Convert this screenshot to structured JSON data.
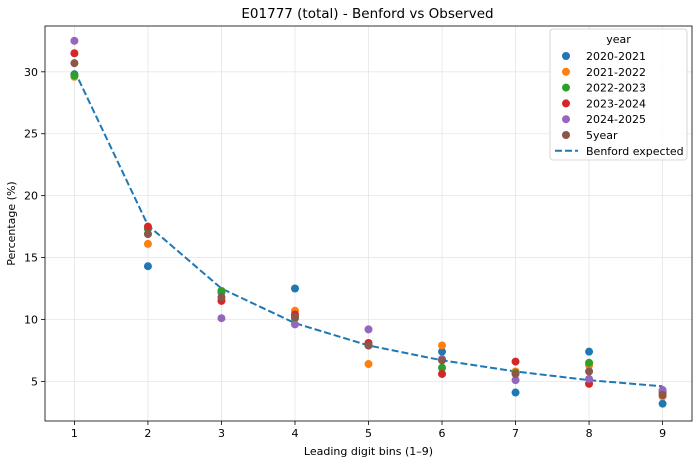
{
  "chart_data": {
    "type": "scatter",
    "title": "E01777 (total) - Benford vs Observed",
    "xlabel": "Leading digit bins (1–9)",
    "ylabel": "Percentage (%)",
    "x": [
      1,
      2,
      3,
      4,
      5,
      6,
      7,
      8,
      9
    ],
    "xlim": [
      0.6,
      9.4
    ],
    "ylim": [
      1.8,
      33.7
    ],
    "yticks": [
      5,
      10,
      15,
      20,
      25,
      30
    ],
    "grid": true,
    "legend": {
      "title": "year",
      "placement": "top-right"
    },
    "series": [
      {
        "name": "2020-2021",
        "color": "#1f77b4",
        "values": [
          29.8,
          14.3,
          12.2,
          12.5,
          7.9,
          7.4,
          4.1,
          7.4,
          3.2
        ]
      },
      {
        "name": "2021-2022",
        "color": "#ff7f0e",
        "values": [
          29.6,
          16.1,
          12.3,
          10.7,
          6.4,
          7.9,
          5.8,
          6.3,
          3.8
        ]
      },
      {
        "name": "2022-2023",
        "color": "#2ca02c",
        "values": [
          29.7,
          17.3,
          12.3,
          10.1,
          7.9,
          6.1,
          5.7,
          6.5,
          4.1
        ]
      },
      {
        "name": "2023-2024",
        "color": "#d62728",
        "values": [
          31.5,
          17.5,
          11.5,
          10.4,
          8.1,
          5.6,
          6.6,
          4.8,
          4.2
        ]
      },
      {
        "name": "2024-2025",
        "color": "#9467bd",
        "values": [
          32.5,
          16.9,
          10.1,
          9.6,
          9.2,
          6.8,
          5.1,
          5.2,
          4.3
        ]
      },
      {
        "name": "5year",
        "color": "#8c564b",
        "values": [
          30.7,
          16.9,
          11.8,
          10.2,
          7.9,
          6.7,
          5.6,
          5.8,
          3.9
        ]
      }
    ],
    "reference": {
      "name": "Benford expected",
      "color": "#1f77b4",
      "style": "dashed",
      "values": [
        30.1,
        17.6,
        12.5,
        9.7,
        7.9,
        6.7,
        5.8,
        5.1,
        4.6
      ]
    }
  }
}
